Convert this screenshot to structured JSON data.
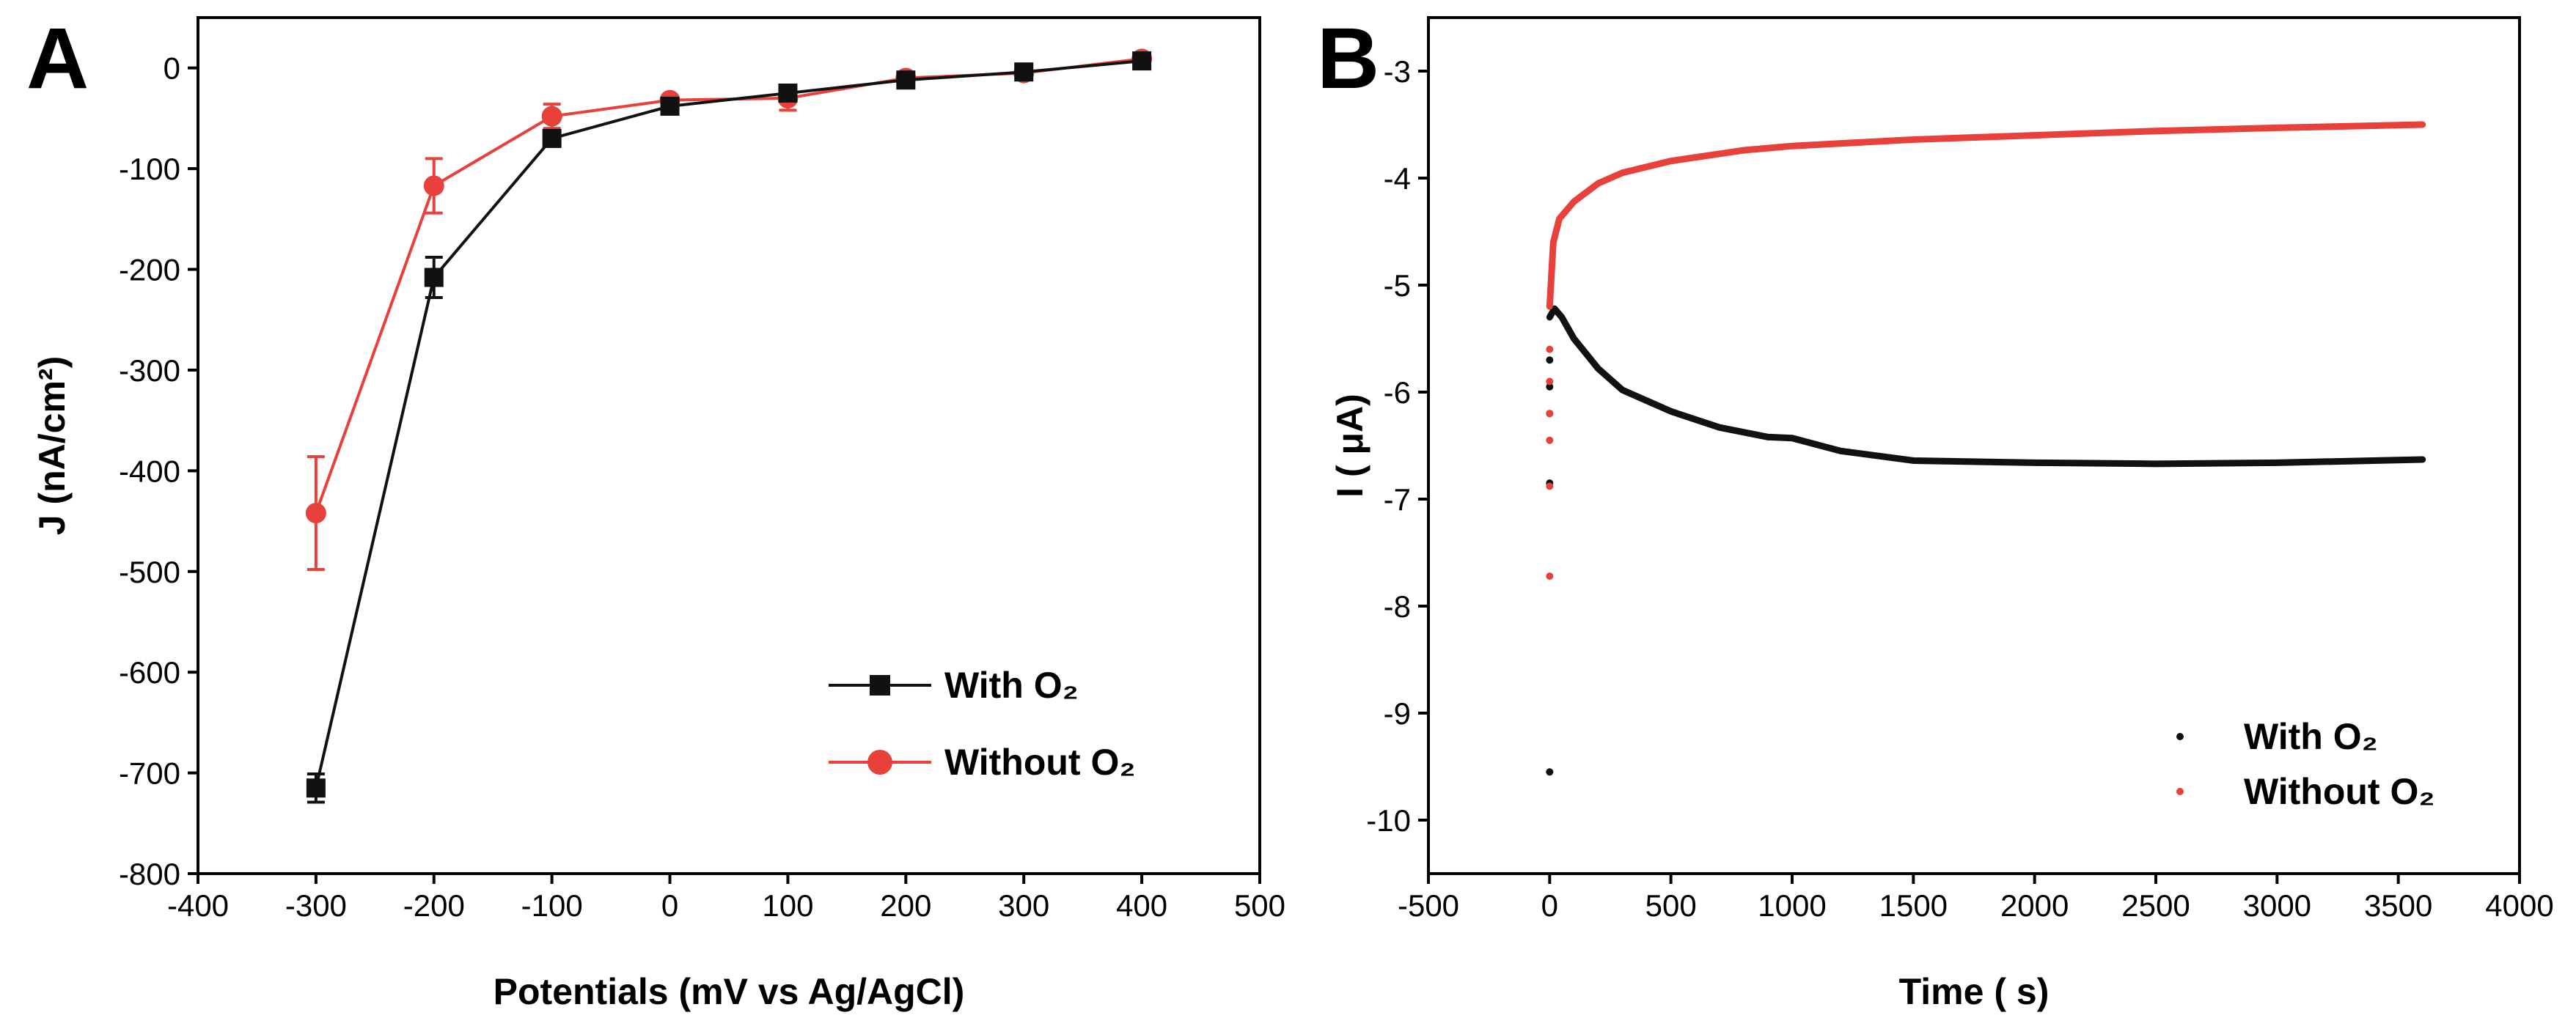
{
  "colors": {
    "with": "#111111",
    "without": "#e8403a"
  },
  "chart_data": [
    {
      "panel": "A",
      "type": "line",
      "xlabel": "Potentials (mV vs Ag/AgCl)",
      "ylabel": "J (nA/cm²)",
      "xlim": [
        -400,
        500
      ],
      "ylim": [
        -800,
        50
      ],
      "xticks": [
        -400,
        -300,
        -200,
        -100,
        0,
        100,
        200,
        300,
        400,
        500
      ],
      "yticks": [
        -800,
        -700,
        -600,
        -500,
        -400,
        -300,
        -200,
        -100,
        0
      ],
      "legend_position": "bottom-right",
      "series": [
        {
          "name": "With O₂",
          "color": "#111111",
          "marker": "square",
          "x": [
            -300,
            -200,
            -100,
            0,
            100,
            200,
            300,
            400
          ],
          "y": [
            -715,
            -208,
            -70,
            -38,
            -25,
            -12,
            -4,
            7
          ],
          "err": [
            14,
            20,
            6,
            5,
            8,
            5,
            6,
            5
          ]
        },
        {
          "name": "Without O₂",
          "color": "#e8403a",
          "marker": "circle",
          "x": [
            -300,
            -200,
            -100,
            0,
            100,
            200,
            300,
            400
          ],
          "y": [
            -442,
            -117,
            -48,
            -32,
            -30,
            -10,
            -5,
            9
          ],
          "err": [
            56,
            27,
            12,
            4,
            12,
            5,
            5,
            4
          ]
        }
      ]
    },
    {
      "panel": "B",
      "type": "scatter",
      "xlabel": "Time ( s)",
      "ylabel": "I ( μA)",
      "xlim": [
        -500,
        4000
      ],
      "ylim": [
        -10.5,
        -2.5
      ],
      "xticks": [
        -500,
        0,
        500,
        1000,
        1500,
        2000,
        2500,
        3000,
        3500,
        4000
      ],
      "yticks": [
        -10,
        -9,
        -8,
        -7,
        -6,
        -5,
        -4,
        -3
      ],
      "legend_position": "bottom-right",
      "series": [
        {
          "name": "With O₂",
          "color": "#111111",
          "outliers": [
            [
              0,
              -9.55
            ],
            [
              0,
              -6.85
            ],
            [
              0,
              -6.2
            ],
            [
              0,
              -5.95
            ],
            [
              0,
              -5.7
            ]
          ],
          "curve": [
            [
              0,
              -5.3
            ],
            [
              20,
              -5.22
            ],
            [
              50,
              -5.3
            ],
            [
              100,
              -5.5
            ],
            [
              200,
              -5.78
            ],
            [
              300,
              -5.98
            ],
            [
              500,
              -6.18
            ],
            [
              700,
              -6.33
            ],
            [
              900,
              -6.42
            ],
            [
              1000,
              -6.43
            ],
            [
              1200,
              -6.55
            ],
            [
              1500,
              -6.64
            ],
            [
              2000,
              -6.66
            ],
            [
              2500,
              -6.67
            ],
            [
              3000,
              -6.66
            ],
            [
              3600,
              -6.63
            ]
          ]
        },
        {
          "name": "Without O₂",
          "color": "#e8403a",
          "outliers": [
            [
              0,
              -7.72
            ],
            [
              0,
              -6.88
            ],
            [
              0,
              -6.45
            ],
            [
              0,
              -6.2
            ],
            [
              0,
              -5.9
            ],
            [
              0,
              -5.6
            ]
          ],
          "curve": [
            [
              0,
              -5.2
            ],
            [
              15,
              -4.6
            ],
            [
              40,
              -4.38
            ],
            [
              100,
              -4.22
            ],
            [
              200,
              -4.05
            ],
            [
              300,
              -3.95
            ],
            [
              500,
              -3.84
            ],
            [
              800,
              -3.74
            ],
            [
              1000,
              -3.7
            ],
            [
              1500,
              -3.64
            ],
            [
              2000,
              -3.6
            ],
            [
              2500,
              -3.56
            ],
            [
              3000,
              -3.53
            ],
            [
              3600,
              -3.5
            ]
          ]
        }
      ]
    }
  ]
}
